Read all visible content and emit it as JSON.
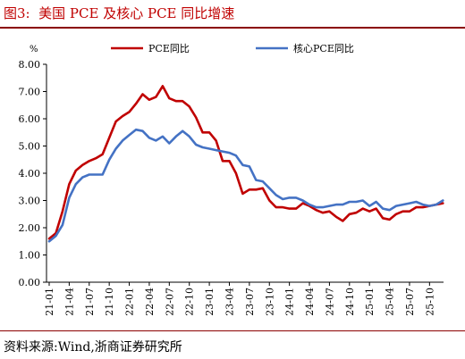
{
  "figure": {
    "label": "图3:",
    "title": "美国 PCE 及核心 PCE 同比增速",
    "source": "资料来源:Wind,浙商证券研究所"
  },
  "chart_data": {
    "type": "line",
    "ylabel": "%",
    "ylim": [
      0,
      8
    ],
    "yticks": [
      "0.00",
      "1.00",
      "2.00",
      "3.00",
      "4.00",
      "5.00",
      "6.00",
      "7.00",
      "8.00"
    ],
    "xticks": [
      "21-01",
      "21-04",
      "21-07",
      "21-10",
      "22-01",
      "22-04",
      "22-07",
      "22-10",
      "23-01",
      "23-04",
      "23-07",
      "23-10",
      "24-01",
      "24-04",
      "24-07",
      "24-10",
      "25-01",
      "25-04",
      "25-07",
      "25-10"
    ],
    "grid": false,
    "legend_position": "top",
    "x": [
      "21-01",
      "21-02",
      "21-03",
      "21-04",
      "21-05",
      "21-06",
      "21-07",
      "21-08",
      "21-09",
      "21-10",
      "21-11",
      "21-12",
      "22-01",
      "22-02",
      "22-03",
      "22-04",
      "22-05",
      "22-06",
      "22-07",
      "22-08",
      "22-09",
      "22-10",
      "22-11",
      "22-12",
      "23-01",
      "23-02",
      "23-03",
      "23-04",
      "23-05",
      "23-06",
      "23-07",
      "23-08",
      "23-09",
      "23-10",
      "23-11",
      "23-12",
      "24-01",
      "24-02",
      "24-03",
      "24-04",
      "24-05",
      "24-06",
      "24-07",
      "24-08",
      "24-09",
      "24-10",
      "24-11",
      "24-12",
      "25-01",
      "25-02",
      "25-03",
      "25-04",
      "25-05",
      "25-06",
      "25-07",
      "25-08",
      "25-09",
      "25-10",
      "25-11",
      "25-12"
    ],
    "series": [
      {
        "name": "PCE同比",
        "color": "#c00000",
        "values": [
          1.6,
          1.8,
          2.6,
          3.6,
          4.1,
          4.3,
          4.45,
          4.55,
          4.7,
          5.3,
          5.9,
          6.1,
          6.25,
          6.55,
          6.9,
          6.7,
          6.8,
          7.2,
          6.75,
          6.65,
          6.65,
          6.45,
          6.05,
          5.5,
          5.5,
          5.2,
          4.45,
          4.45,
          4.0,
          3.25,
          3.4,
          3.4,
          3.45,
          3.0,
          2.75,
          2.75,
          2.7,
          2.7,
          2.9,
          2.8,
          2.65,
          2.55,
          2.6,
          2.4,
          2.25,
          2.5,
          2.55,
          2.7,
          2.6,
          2.7,
          2.35,
          2.3,
          2.5,
          2.6,
          2.6,
          2.75,
          2.75,
          2.8,
          2.85,
          2.9
        ]
      },
      {
        "name": "核心PCE同比",
        "color": "#4472c4",
        "values": [
          1.5,
          1.7,
          2.1,
          3.1,
          3.6,
          3.85,
          3.95,
          3.95,
          3.95,
          4.5,
          4.9,
          5.2,
          5.4,
          5.6,
          5.55,
          5.3,
          5.2,
          5.35,
          5.1,
          5.35,
          5.55,
          5.35,
          5.05,
          4.95,
          4.9,
          4.85,
          4.8,
          4.75,
          4.65,
          4.3,
          4.25,
          3.75,
          3.7,
          3.45,
          3.2,
          3.05,
          3.1,
          3.1,
          3.0,
          2.85,
          2.75,
          2.75,
          2.8,
          2.85,
          2.85,
          2.95,
          2.95,
          3.0,
          2.8,
          2.95,
          2.7,
          2.65,
          2.8,
          2.85,
          2.9,
          2.95,
          2.85,
          2.8,
          2.85,
          3.0
        ]
      }
    ]
  }
}
